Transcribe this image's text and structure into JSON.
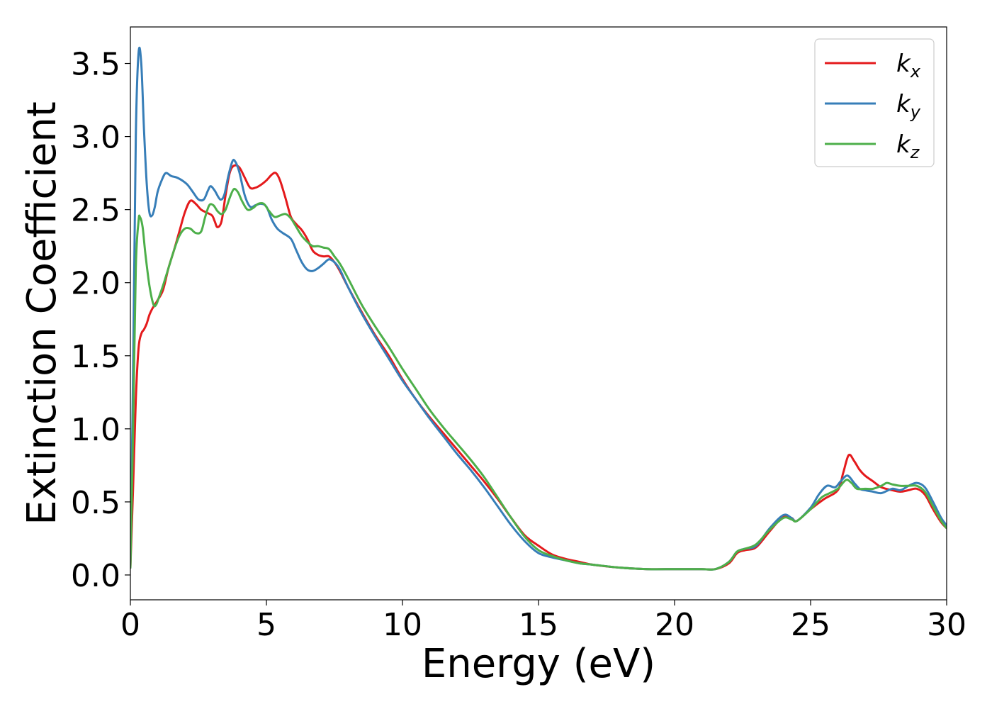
{
  "chart_data": {
    "type": "line",
    "title": "",
    "xlabel": "Energy (eV)",
    "ylabel": "Extinction Coefficient",
    "xlim": [
      0,
      30
    ],
    "ylim": [
      -0.17,
      3.75
    ],
    "xticks": [
      0,
      5,
      10,
      15,
      20,
      25,
      30
    ],
    "xtick_labels": [
      "0",
      "5",
      "10",
      "15",
      "20",
      "25",
      "30"
    ],
    "yticks": [
      0.0,
      0.5,
      1.0,
      1.5,
      2.0,
      2.5,
      3.0,
      3.5
    ],
    "ytick_labels": [
      "0.0",
      "0.5",
      "1.0",
      "1.5",
      "2.0",
      "2.5",
      "3.0",
      "3.5"
    ],
    "grid": false,
    "legend_position": "top-right",
    "series": [
      {
        "name": "k",
        "subscript": "x",
        "color": "#e41a1c",
        "points": [
          [
            0,
            0.05
          ],
          [
            0.1,
            0.6
          ],
          [
            0.2,
            1.2
          ],
          [
            0.3,
            1.55
          ],
          [
            0.4,
            1.65
          ],
          [
            0.5,
            1.68
          ],
          [
            0.6,
            1.72
          ],
          [
            0.7,
            1.78
          ],
          [
            0.8,
            1.82
          ],
          [
            0.9,
            1.85
          ],
          [
            1.0,
            1.88
          ],
          [
            1.2,
            1.95
          ],
          [
            1.4,
            2.1
          ],
          [
            1.6,
            2.22
          ],
          [
            1.8,
            2.35
          ],
          [
            2.0,
            2.48
          ],
          [
            2.2,
            2.56
          ],
          [
            2.4,
            2.54
          ],
          [
            2.6,
            2.5
          ],
          [
            2.8,
            2.48
          ],
          [
            3.0,
            2.46
          ],
          [
            3.1,
            2.42
          ],
          [
            3.2,
            2.38
          ],
          [
            3.35,
            2.42
          ],
          [
            3.5,
            2.6
          ],
          [
            3.65,
            2.75
          ],
          [
            3.8,
            2.8
          ],
          [
            4.0,
            2.79
          ],
          [
            4.2,
            2.72
          ],
          [
            4.4,
            2.65
          ],
          [
            4.6,
            2.65
          ],
          [
            4.8,
            2.67
          ],
          [
            5.0,
            2.7
          ],
          [
            5.2,
            2.74
          ],
          [
            5.35,
            2.75
          ],
          [
            5.5,
            2.7
          ],
          [
            5.7,
            2.58
          ],
          [
            5.9,
            2.45
          ],
          [
            6.1,
            2.4
          ],
          [
            6.3,
            2.36
          ],
          [
            6.5,
            2.3
          ],
          [
            6.7,
            2.22
          ],
          [
            6.9,
            2.19
          ],
          [
            7.1,
            2.18
          ],
          [
            7.3,
            2.18
          ],
          [
            7.5,
            2.14
          ],
          [
            7.7,
            2.08
          ],
          [
            8.0,
            1.97
          ],
          [
            8.5,
            1.8
          ],
          [
            9.0,
            1.64
          ],
          [
            9.5,
            1.5
          ],
          [
            10.0,
            1.34
          ],
          [
            10.5,
            1.2
          ],
          [
            11.0,
            1.08
          ],
          [
            11.5,
            0.97
          ],
          [
            12.0,
            0.86
          ],
          [
            12.5,
            0.75
          ],
          [
            13.0,
            0.64
          ],
          [
            13.5,
            0.52
          ],
          [
            14.0,
            0.39
          ],
          [
            14.5,
            0.27
          ],
          [
            15.0,
            0.2
          ],
          [
            15.5,
            0.14
          ],
          [
            16.0,
            0.11
          ],
          [
            16.5,
            0.09
          ],
          [
            17.0,
            0.07
          ],
          [
            18.0,
            0.05
          ],
          [
            19.0,
            0.04
          ],
          [
            20.0,
            0.04
          ],
          [
            21.0,
            0.04
          ],
          [
            21.5,
            0.04
          ],
          [
            22.0,
            0.08
          ],
          [
            22.3,
            0.15
          ],
          [
            22.6,
            0.17
          ],
          [
            23.0,
            0.19
          ],
          [
            23.5,
            0.3
          ],
          [
            24.0,
            0.4
          ],
          [
            24.3,
            0.39
          ],
          [
            24.5,
            0.37
          ],
          [
            25.0,
            0.45
          ],
          [
            25.5,
            0.52
          ],
          [
            26.0,
            0.58
          ],
          [
            26.2,
            0.7
          ],
          [
            26.4,
            0.82
          ],
          [
            26.6,
            0.78
          ],
          [
            26.8,
            0.72
          ],
          [
            27.0,
            0.68
          ],
          [
            27.3,
            0.64
          ],
          [
            27.6,
            0.6
          ],
          [
            28.0,
            0.58
          ],
          [
            28.3,
            0.57
          ],
          [
            28.6,
            0.58
          ],
          [
            28.9,
            0.59
          ],
          [
            29.2,
            0.55
          ],
          [
            29.5,
            0.45
          ],
          [
            29.8,
            0.36
          ],
          [
            30.0,
            0.32
          ]
        ]
      },
      {
        "name": "k",
        "subscript": "y",
        "color": "#377eb8",
        "points": [
          [
            0,
            0.05
          ],
          [
            0.1,
            1.4
          ],
          [
            0.2,
            3.0
          ],
          [
            0.3,
            3.57
          ],
          [
            0.4,
            3.5
          ],
          [
            0.5,
            3.05
          ],
          [
            0.6,
            2.68
          ],
          [
            0.7,
            2.48
          ],
          [
            0.8,
            2.46
          ],
          [
            0.9,
            2.52
          ],
          [
            1.0,
            2.62
          ],
          [
            1.15,
            2.7
          ],
          [
            1.3,
            2.75
          ],
          [
            1.5,
            2.73
          ],
          [
            1.7,
            2.72
          ],
          [
            1.9,
            2.7
          ],
          [
            2.1,
            2.67
          ],
          [
            2.3,
            2.62
          ],
          [
            2.5,
            2.57
          ],
          [
            2.7,
            2.57
          ],
          [
            2.85,
            2.63
          ],
          [
            2.95,
            2.66
          ],
          [
            3.1,
            2.63
          ],
          [
            3.3,
            2.57
          ],
          [
            3.45,
            2.6
          ],
          [
            3.6,
            2.73
          ],
          [
            3.75,
            2.83
          ],
          [
            3.85,
            2.83
          ],
          [
            4.0,
            2.76
          ],
          [
            4.2,
            2.6
          ],
          [
            4.4,
            2.52
          ],
          [
            4.6,
            2.53
          ],
          [
            4.8,
            2.54
          ],
          [
            5.0,
            2.52
          ],
          [
            5.2,
            2.43
          ],
          [
            5.4,
            2.37
          ],
          [
            5.6,
            2.34
          ],
          [
            5.9,
            2.3
          ],
          [
            6.1,
            2.22
          ],
          [
            6.3,
            2.14
          ],
          [
            6.5,
            2.09
          ],
          [
            6.7,
            2.08
          ],
          [
            6.9,
            2.1
          ],
          [
            7.1,
            2.13
          ],
          [
            7.3,
            2.16
          ],
          [
            7.5,
            2.14
          ],
          [
            7.7,
            2.09
          ],
          [
            8.0,
            1.97
          ],
          [
            8.5,
            1.79
          ],
          [
            9.0,
            1.63
          ],
          [
            9.5,
            1.48
          ],
          [
            10.0,
            1.33
          ],
          [
            10.5,
            1.2
          ],
          [
            11.0,
            1.07
          ],
          [
            11.5,
            0.95
          ],
          [
            12.0,
            0.83
          ],
          [
            12.5,
            0.72
          ],
          [
            13.0,
            0.6
          ],
          [
            13.5,
            0.47
          ],
          [
            14.0,
            0.34
          ],
          [
            14.5,
            0.23
          ],
          [
            15.0,
            0.15
          ],
          [
            15.5,
            0.12
          ],
          [
            16.0,
            0.1
          ],
          [
            16.5,
            0.08
          ],
          [
            17.0,
            0.07
          ],
          [
            18.0,
            0.05
          ],
          [
            19.0,
            0.04
          ],
          [
            20.0,
            0.04
          ],
          [
            21.0,
            0.04
          ],
          [
            21.5,
            0.04
          ],
          [
            22.0,
            0.09
          ],
          [
            22.3,
            0.16
          ],
          [
            22.6,
            0.18
          ],
          [
            23.0,
            0.2
          ],
          [
            23.5,
            0.32
          ],
          [
            24.0,
            0.41
          ],
          [
            24.3,
            0.39
          ],
          [
            24.5,
            0.37
          ],
          [
            25.0,
            0.46
          ],
          [
            25.3,
            0.55
          ],
          [
            25.6,
            0.61
          ],
          [
            25.9,
            0.6
          ],
          [
            26.1,
            0.64
          ],
          [
            26.35,
            0.68
          ],
          [
            26.6,
            0.63
          ],
          [
            26.8,
            0.59
          ],
          [
            27.0,
            0.58
          ],
          [
            27.3,
            0.57
          ],
          [
            27.6,
            0.56
          ],
          [
            28.0,
            0.59
          ],
          [
            28.3,
            0.58
          ],
          [
            28.6,
            0.61
          ],
          [
            28.9,
            0.63
          ],
          [
            29.2,
            0.6
          ],
          [
            29.5,
            0.5
          ],
          [
            29.8,
            0.39
          ],
          [
            30.0,
            0.34
          ]
        ]
      },
      {
        "name": "k",
        "subscript": "z",
        "color": "#4daf4a",
        "points": [
          [
            0,
            0.05
          ],
          [
            0.1,
            1.0
          ],
          [
            0.2,
            2.1
          ],
          [
            0.3,
            2.42
          ],
          [
            0.35,
            2.45
          ],
          [
            0.45,
            2.38
          ],
          [
            0.55,
            2.2
          ],
          [
            0.7,
            1.98
          ],
          [
            0.85,
            1.85
          ],
          [
            0.95,
            1.85
          ],
          [
            1.05,
            1.9
          ],
          [
            1.2,
            1.98
          ],
          [
            1.4,
            2.1
          ],
          [
            1.6,
            2.22
          ],
          [
            1.8,
            2.32
          ],
          [
            2.0,
            2.37
          ],
          [
            2.2,
            2.37
          ],
          [
            2.4,
            2.34
          ],
          [
            2.6,
            2.35
          ],
          [
            2.75,
            2.45
          ],
          [
            2.9,
            2.53
          ],
          [
            3.05,
            2.53
          ],
          [
            3.2,
            2.49
          ],
          [
            3.35,
            2.47
          ],
          [
            3.5,
            2.5
          ],
          [
            3.65,
            2.58
          ],
          [
            3.8,
            2.64
          ],
          [
            3.95,
            2.62
          ],
          [
            4.1,
            2.56
          ],
          [
            4.3,
            2.5
          ],
          [
            4.5,
            2.51
          ],
          [
            4.7,
            2.54
          ],
          [
            4.9,
            2.54
          ],
          [
            5.1,
            2.49
          ],
          [
            5.3,
            2.45
          ],
          [
            5.5,
            2.46
          ],
          [
            5.7,
            2.47
          ],
          [
            5.9,
            2.44
          ],
          [
            6.1,
            2.38
          ],
          [
            6.3,
            2.32
          ],
          [
            6.5,
            2.28
          ],
          [
            6.7,
            2.25
          ],
          [
            6.9,
            2.25
          ],
          [
            7.1,
            2.24
          ],
          [
            7.3,
            2.23
          ],
          [
            7.5,
            2.18
          ],
          [
            7.7,
            2.13
          ],
          [
            8.0,
            2.03
          ],
          [
            8.5,
            1.85
          ],
          [
            9.0,
            1.7
          ],
          [
            9.5,
            1.56
          ],
          [
            10.0,
            1.41
          ],
          [
            10.5,
            1.27
          ],
          [
            11.0,
            1.13
          ],
          [
            11.5,
            1.01
          ],
          [
            12.0,
            0.9
          ],
          [
            12.5,
            0.79
          ],
          [
            13.0,
            0.67
          ],
          [
            13.5,
            0.53
          ],
          [
            14.0,
            0.39
          ],
          [
            14.5,
            0.26
          ],
          [
            15.0,
            0.17
          ],
          [
            15.5,
            0.13
          ],
          [
            16.0,
            0.1
          ],
          [
            16.5,
            0.08
          ],
          [
            17.0,
            0.07
          ],
          [
            18.0,
            0.05
          ],
          [
            19.0,
            0.04
          ],
          [
            20.0,
            0.04
          ],
          [
            21.0,
            0.04
          ],
          [
            21.5,
            0.04
          ],
          [
            22.0,
            0.09
          ],
          [
            22.3,
            0.16
          ],
          [
            22.6,
            0.18
          ],
          [
            23.0,
            0.21
          ],
          [
            23.5,
            0.31
          ],
          [
            24.0,
            0.39
          ],
          [
            24.3,
            0.38
          ],
          [
            24.5,
            0.37
          ],
          [
            25.0,
            0.45
          ],
          [
            25.4,
            0.53
          ],
          [
            25.7,
            0.56
          ],
          [
            26.0,
            0.59
          ],
          [
            26.3,
            0.65
          ],
          [
            26.5,
            0.63
          ],
          [
            26.7,
            0.59
          ],
          [
            27.0,
            0.59
          ],
          [
            27.3,
            0.59
          ],
          [
            27.6,
            0.61
          ],
          [
            27.8,
            0.63
          ],
          [
            28.0,
            0.62
          ],
          [
            28.3,
            0.61
          ],
          [
            28.6,
            0.61
          ],
          [
            28.9,
            0.61
          ],
          [
            29.2,
            0.57
          ],
          [
            29.5,
            0.47
          ],
          [
            29.8,
            0.37
          ],
          [
            30.0,
            0.32
          ]
        ]
      }
    ]
  }
}
